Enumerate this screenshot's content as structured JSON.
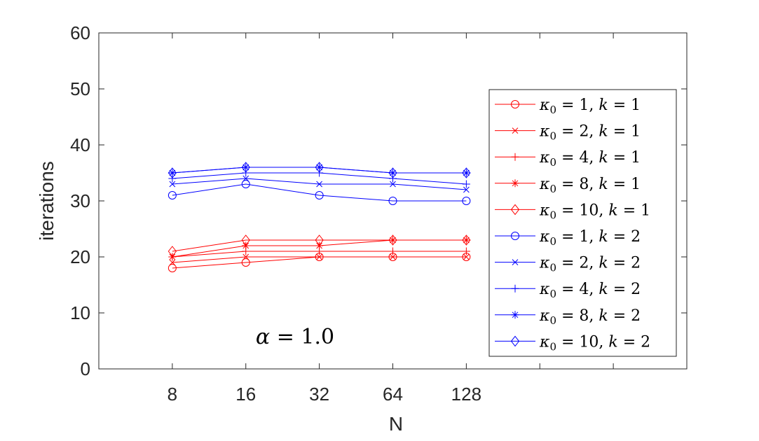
{
  "chart_data": {
    "type": "line",
    "title": "",
    "xlabel": "N",
    "ylabel": "iterations",
    "x": [
      8,
      16,
      32,
      64,
      128
    ],
    "xticklabels": [
      "8",
      "16",
      "32",
      "64",
      "128"
    ],
    "xlim_index": [
      -1,
      7
    ],
    "ylim": [
      0,
      60
    ],
    "yticks": [
      0,
      10,
      20,
      30,
      40,
      50,
      60
    ],
    "yticklabels": [
      "0",
      "10",
      "20",
      "30",
      "40",
      "50",
      "60"
    ],
    "grid": false,
    "legend_position": "right",
    "annotation": {
      "symbol": "α",
      "rest": " = 1.0"
    },
    "series": [
      {
        "kappa0": "1",
        "k": "1",
        "marker": "circle",
        "color": "#ff0000",
        "values": [
          18,
          19,
          20,
          20,
          20
        ]
      },
      {
        "kappa0": "2",
        "k": "1",
        "marker": "x",
        "color": "#ff0000",
        "values": [
          19,
          20,
          20,
          20,
          20
        ]
      },
      {
        "kappa0": "4",
        "k": "1",
        "marker": "plus",
        "color": "#ff0000",
        "values": [
          20,
          21,
          21,
          21,
          21
        ]
      },
      {
        "kappa0": "8",
        "k": "1",
        "marker": "star",
        "color": "#ff0000",
        "values": [
          20,
          22,
          22,
          23,
          23
        ]
      },
      {
        "kappa0": "10",
        "k": "1",
        "marker": "diamond",
        "color": "#ff0000",
        "values": [
          21,
          23,
          23,
          23,
          23
        ]
      },
      {
        "kappa0": "1",
        "k": "2",
        "marker": "circle",
        "color": "#0000ff",
        "values": [
          31,
          33,
          31,
          30,
          30
        ]
      },
      {
        "kappa0": "2",
        "k": "2",
        "marker": "x",
        "color": "#0000ff",
        "values": [
          33,
          34,
          33,
          33,
          32
        ]
      },
      {
        "kappa0": "4",
        "k": "2",
        "marker": "plus",
        "color": "#0000ff",
        "values": [
          34,
          35,
          35,
          34,
          33
        ]
      },
      {
        "kappa0": "8",
        "k": "2",
        "marker": "star",
        "color": "#0000ff",
        "values": [
          35,
          36,
          36,
          35,
          35
        ]
      },
      {
        "kappa0": "10",
        "k": "2",
        "marker": "diamond",
        "color": "#0000ff",
        "values": [
          35,
          36,
          36,
          35,
          35
        ]
      }
    ],
    "legend_symbol": "κ",
    "legend_subscript": "0",
    "legend_k": "k"
  }
}
